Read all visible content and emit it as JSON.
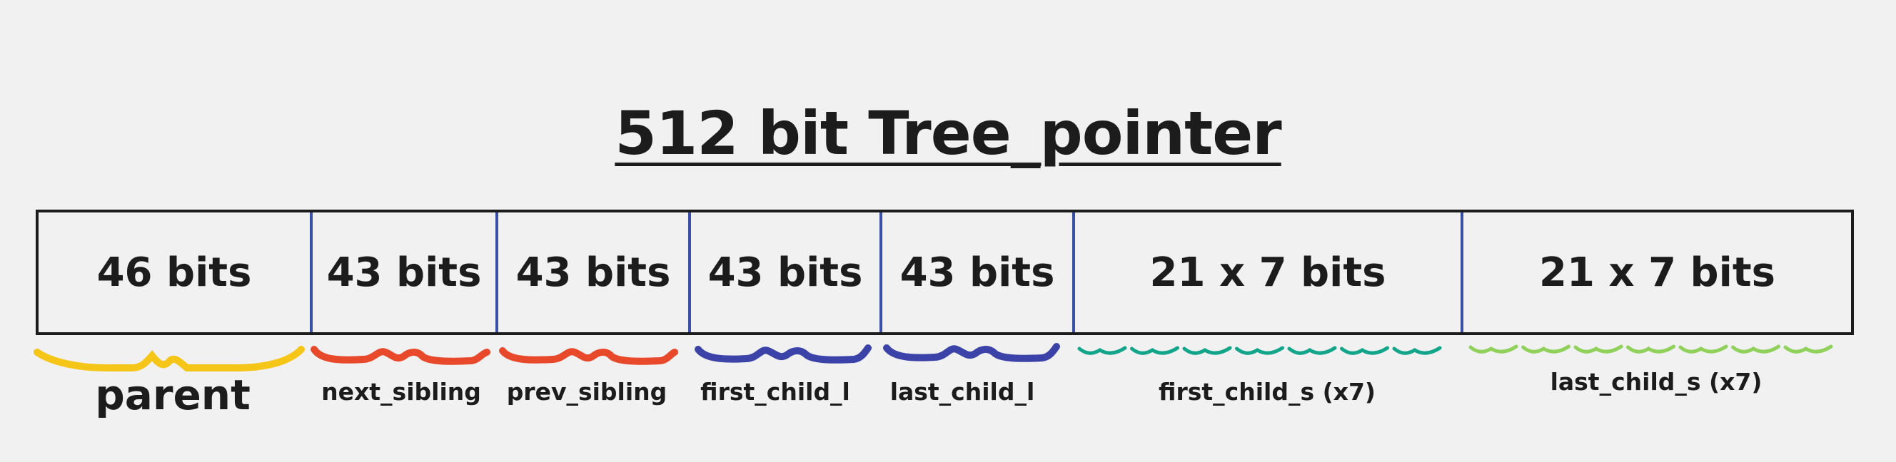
{
  "title": "512 bit Tree_pointer",
  "segments": [
    {
      "bits": "46 bits",
      "label": "parent",
      "color": "#f5c518"
    },
    {
      "bits": "43 bits",
      "label": "next_sibling",
      "color": "#e8492b"
    },
    {
      "bits": "43 bits",
      "label": "prev_sibling",
      "color": "#e8492b"
    },
    {
      "bits": "43 bits",
      "label": "first_child_l",
      "color": "#3b42a8"
    },
    {
      "bits": "43 bits",
      "label": "last_child_l",
      "color": "#3b42a8"
    },
    {
      "bits": "21 x 7 bits",
      "label": "first_child_s (x7)",
      "color": "#13a58a"
    },
    {
      "bits": "21 x 7 bits",
      "label": "last_child_s (x7)",
      "color": "#8fd15a"
    }
  ]
}
